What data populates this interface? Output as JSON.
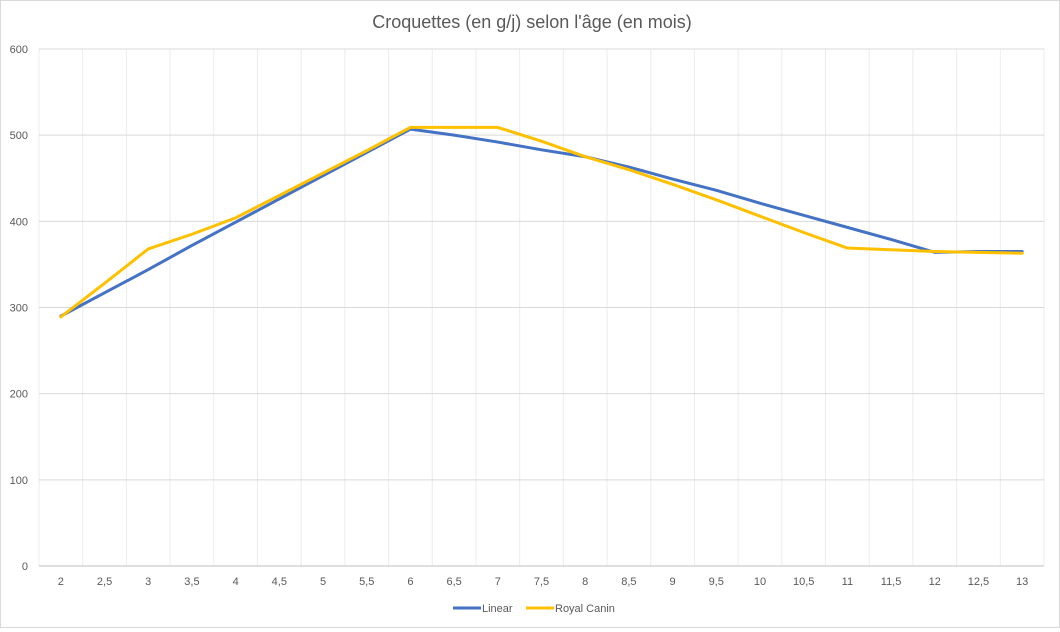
{
  "chart_data": {
    "type": "line",
    "title": "Croquettes (en g/j) selon l'âge (en mois)",
    "xlabel": "",
    "ylabel": "",
    "x": [
      "2",
      "2,5",
      "3",
      "3,5",
      "4",
      "4,5",
      "5",
      "5,5",
      "6",
      "6,5",
      "7",
      "7,5",
      "8",
      "8,5",
      "9",
      "9,5",
      "10",
      "10,5",
      "11",
      "11,5",
      "12",
      "12,5",
      "13"
    ],
    "ylim": [
      0,
      600
    ],
    "yticks": [
      "0",
      "100",
      "200",
      "300",
      "400",
      "500",
      "600"
    ],
    "grid": true,
    "legend_position": "bottom",
    "series": [
      {
        "name": "Linear",
        "color": "#4472c4",
        "values": [
          290,
          317,
          344,
          372,
          399,
          426,
          453,
          480,
          507,
          500,
          492,
          483,
          475,
          463,
          449,
          436,
          421,
          407,
          393,
          379,
          364,
          365,
          365
        ]
      },
      {
        "name": "Royal Canin",
        "color": "#ffc000",
        "values": [
          289,
          328,
          368,
          385,
          404,
          430,
          456,
          482,
          509,
          509,
          509,
          493,
          475,
          460,
          443,
          425,
          406,
          387,
          369,
          367,
          365,
          364,
          363
        ]
      }
    ]
  }
}
